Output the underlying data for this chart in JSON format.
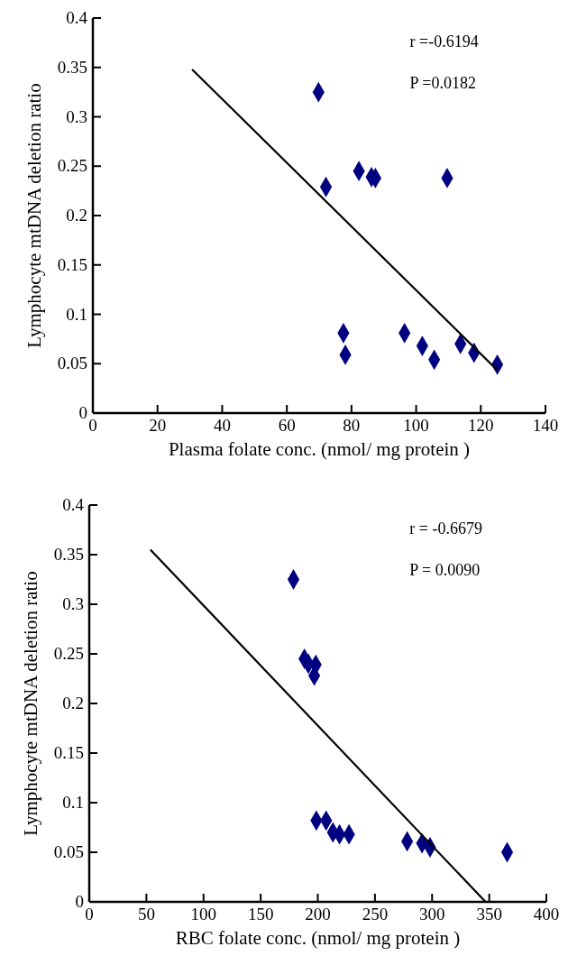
{
  "chart_data": [
    {
      "type": "scatter",
      "xlabel": "Plasma folate conc. (nmol/ mg protein )",
      "ylabel": "Lymphocyte mtDNA deletion ratio",
      "xlim": [
        0,
        140
      ],
      "ylim": [
        0,
        0.4
      ],
      "xticks": [
        0,
        20,
        40,
        60,
        80,
        100,
        120,
        140
      ],
      "yticks": [
        0,
        0.05,
        0.1,
        0.15,
        0.2,
        0.25,
        0.3,
        0.35,
        0.4
      ],
      "annotations": [
        "r =-0.6194",
        "P =0.0182"
      ],
      "series": [
        {
          "color": "#000080",
          "marker": "diamond",
          "x": [
            69.8,
            72.1,
            82.3,
            86.2,
            87.4,
            109.6,
            77.5,
            78.1,
            96.4,
            101.9,
            105.6,
            113.7,
            117.9,
            125.1
          ],
          "values": [
            0.325,
            0.229,
            0.245,
            0.239,
            0.238,
            0.238,
            0.081,
            0.059,
            0.081,
            0.068,
            0.054,
            0.07,
            0.061,
            0.049
          ]
        },
        {
          "type": "line",
          "color": "#000000",
          "line_style": "solid",
          "x": [
            30.7,
            124.9
          ],
          "values": [
            0.348,
            0.044
          ]
        }
      ]
    },
    {
      "type": "scatter",
      "xlabel": "RBC folate conc. (nmol/ mg protein )",
      "ylabel": "Lymphocyte mtDNA deletion ratio",
      "xlim": [
        0,
        400
      ],
      "ylim": [
        0,
        0.4
      ],
      "xticks": [
        0,
        50,
        100,
        150,
        200,
        250,
        300,
        350,
        400
      ],
      "yticks": [
        0,
        0.05,
        0.1,
        0.15,
        0.2,
        0.25,
        0.3,
        0.35,
        0.4
      ],
      "annotations": [
        "r = -0.6679",
        "P = 0.0090"
      ],
      "series": [
        {
          "color": "#000080",
          "marker": "diamond",
          "x": [
            178.7,
            188.3,
            191.7,
            198.2,
            196.9,
            198.7,
            207.3,
            213.2,
            219,
            227.3,
            278.2,
            291.2,
            298.2,
            365.7
          ],
          "values": [
            0.325,
            0.245,
            0.24,
            0.239,
            0.228,
            0.082,
            0.082,
            0.07,
            0.068,
            0.068,
            0.061,
            0.059,
            0.055,
            0.05
          ]
        },
        {
          "type": "line",
          "color": "#000000",
          "line_style": "solid",
          "x": [
            53.5,
            346.8
          ],
          "values": [
            0.355,
            0
          ]
        }
      ]
    }
  ]
}
